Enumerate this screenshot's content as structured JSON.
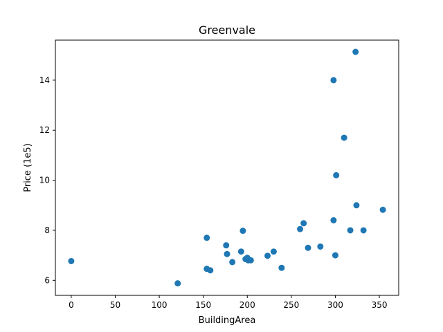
{
  "chart_data": {
    "type": "scatter",
    "title": "Greenvale",
    "xlabel": "BuildingArea",
    "ylabel": "Price (1e5)",
    "xlim": [
      -18,
      372
    ],
    "ylim": [
      5.4,
      15.6
    ],
    "x_ticks": [
      0,
      50,
      100,
      150,
      200,
      250,
      300,
      350
    ],
    "y_ticks": [
      6,
      8,
      10,
      12,
      14
    ],
    "grid": false,
    "point_color": "#1f77b4",
    "series": [
      {
        "points": [
          {
            "x": 0,
            "y": 6.77
          },
          {
            "x": 121,
            "y": 5.88
          },
          {
            "x": 154,
            "y": 7.7
          },
          {
            "x": 154,
            "y": 6.46
          },
          {
            "x": 158,
            "y": 6.4
          },
          {
            "x": 176,
            "y": 7.4
          },
          {
            "x": 177,
            "y": 7.05
          },
          {
            "x": 183,
            "y": 6.73
          },
          {
            "x": 193,
            "y": 7.15
          },
          {
            "x": 195,
            "y": 7.98
          },
          {
            "x": 198,
            "y": 6.85
          },
          {
            "x": 200,
            "y": 6.9
          },
          {
            "x": 201,
            "y": 6.8
          },
          {
            "x": 204,
            "y": 6.8
          },
          {
            "x": 223,
            "y": 6.98
          },
          {
            "x": 230,
            "y": 7.15
          },
          {
            "x": 239,
            "y": 6.5
          },
          {
            "x": 260,
            "y": 8.05
          },
          {
            "x": 264,
            "y": 8.28
          },
          {
            "x": 269,
            "y": 7.3
          },
          {
            "x": 283,
            "y": 7.35
          },
          {
            "x": 298,
            "y": 14.0
          },
          {
            "x": 298,
            "y": 8.4
          },
          {
            "x": 300,
            "y": 7.0
          },
          {
            "x": 301,
            "y": 10.2
          },
          {
            "x": 310,
            "y": 11.7
          },
          {
            "x": 317,
            "y": 8.0
          },
          {
            "x": 323,
            "y": 15.13
          },
          {
            "x": 324,
            "y": 9.0
          },
          {
            "x": 332,
            "y": 8.0
          },
          {
            "x": 354,
            "y": 8.82
          }
        ]
      }
    ]
  }
}
